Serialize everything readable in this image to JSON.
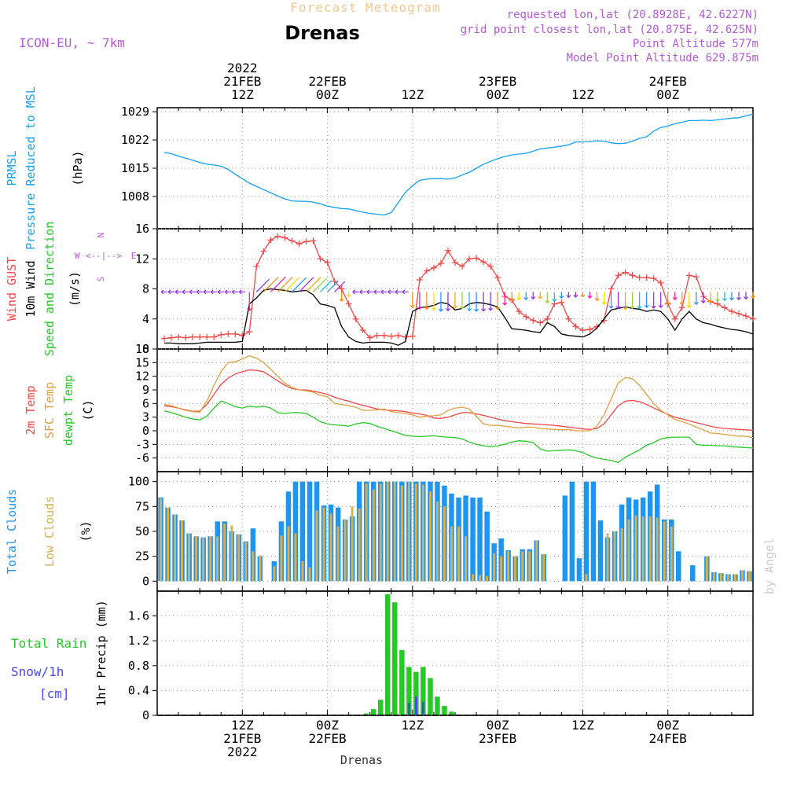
{
  "header": {
    "super_title": "Forecast Meteogram",
    "station": "Drenas",
    "model": "ICON-EU, ~ 7km",
    "requested": "requested lon,lat (20.8928E, 42.6227N)",
    "grid": "grid point closest lon,lat (20.875E, 42.625N)",
    "point_alt": "Point Altitude 577m",
    "model_alt": "Model Point Altitude 629.875m"
  },
  "footer": {
    "station": "Drenas",
    "credit": "by Angel"
  },
  "colors": {
    "pressure": "#14a0f0",
    "gust": "#f04848",
    "wind": "#000000",
    "dir_label": "#28c828",
    "t2m": "#f04848",
    "tsfc": "#e0a040",
    "dew": "#28c828",
    "total_cloud": "#1e96f0",
    "low_cloud": "#d8b050",
    "rain": "#28c828",
    "snow": "#4848f0",
    "compass": "#b45ad8",
    "grid": "#999999"
  },
  "time_axis": {
    "top_labels": [
      {
        "hour": 12,
        "lines": [
          "2022",
          "21FEB",
          "12Z"
        ]
      },
      {
        "hour": 24,
        "lines": [
          "22FEB",
          "00Z"
        ]
      },
      {
        "hour": 36,
        "lines": [
          "12Z"
        ]
      },
      {
        "hour": 48,
        "lines": [
          "23FEB",
          "00Z"
        ]
      },
      {
        "hour": 60,
        "lines": [
          "12Z"
        ]
      },
      {
        "hour": 72,
        "lines": [
          "24FEB",
          "00Z"
        ]
      }
    ],
    "bottom_labels": [
      {
        "hour": 12,
        "lines": [
          "12Z",
          "21FEB",
          "2022"
        ]
      },
      {
        "hour": 24,
        "lines": [
          "00Z",
          "22FEB"
        ]
      },
      {
        "hour": 36,
        "lines": [
          "12Z"
        ]
      },
      {
        "hour": 48,
        "lines": [
          "00Z",
          "23FEB"
        ]
      },
      {
        "hour": 60,
        "lines": [
          "12Z"
        ]
      },
      {
        "hour": 72,
        "lines": [
          "00Z",
          "24FEB"
        ]
      }
    ]
  },
  "chart_data": [
    {
      "id": "pressure",
      "type": "line",
      "title": "PRMSL Pressure Reduced to MSL",
      "ylabel": "(hPa)",
      "side_labels": [
        "PRMSL",
        "Pressure Reduced to MSL",
        "(hPa)"
      ],
      "ylim": [
        1000,
        1030
      ],
      "yticks": [
        1008,
        1015,
        1022,
        1029
      ],
      "x_start_hour": 1,
      "x_step_hour": 1,
      "series": [
        {
          "name": "Pressure",
          "values": [
            1018.9,
            1018.6,
            1018.0,
            1017.5,
            1017.0,
            1016.4,
            1016.0,
            1015.8,
            1015.5,
            1014.7,
            1013.5,
            1012.4,
            1011.3,
            1010.5,
            1009.7,
            1008.9,
            1008.1,
            1007.4,
            1006.9,
            1006.8,
            1006.8,
            1006.6,
            1006.2,
            1005.6,
            1005.3,
            1005.0,
            1004.9,
            1004.5,
            1004.1,
            1003.8,
            1003.6,
            1003.4,
            1004.0,
            1006.5,
            1009.0,
            1010.7,
            1012.0,
            1012.3,
            1012.4,
            1012.4,
            1012.3,
            1012.6,
            1013.3,
            1014.0,
            1015.0,
            1016.0,
            1016.7,
            1017.4,
            1017.9,
            1018.3,
            1018.5,
            1018.7,
            1019.2,
            1019.8,
            1020.0,
            1020.2,
            1020.5,
            1020.8,
            1021.5,
            1021.5,
            1021.6,
            1021.8,
            1021.7,
            1021.3,
            1021.1,
            1021.2,
            1021.7,
            1022.4,
            1022.8,
            1024.2,
            1025.1,
            1025.5,
            1026.0,
            1026.4,
            1026.8,
            1026.8,
            1026.9,
            1026.8,
            1027.0,
            1027.2,
            1027.4,
            1027.5,
            1028.0,
            1028.4
          ]
        }
      ]
    },
    {
      "id": "wind",
      "type": "line",
      "title": "Wind GUST, 10m Wind Speed and Direction",
      "ylabel": "(m/s)",
      "side_labels": [
        "Wind GUST",
        "10m Wind",
        "Speed and Direction",
        "(m/s)"
      ],
      "ylim": [
        0,
        16
      ],
      "yticks": [
        0,
        4,
        8,
        12,
        16
      ],
      "compass": {
        "n": "N",
        "w": "W",
        "e": "E",
        "s": "S",
        "arrow": "<--|-->"
      },
      "x_start_hour": 1,
      "x_step_hour": 1,
      "series": [
        {
          "name": "Wind GUST",
          "values": [
            1.4,
            1.5,
            1.6,
            1.5,
            1.6,
            1.6,
            1.6,
            1.6,
            1.9,
            2.0,
            2.0,
            1.8,
            2.3,
            11.0,
            13.0,
            14.5,
            15.0,
            14.8,
            14.4,
            14.0,
            14.3,
            14.4,
            12.0,
            11.5,
            9.0,
            8.0,
            6.0,
            4.0,
            2.5,
            1.5,
            1.8,
            1.8,
            1.7,
            1.8,
            1.6,
            1.7,
            9.2,
            10.4,
            10.8,
            11.4,
            13.1,
            11.5,
            11.0,
            12.0,
            12.1,
            11.6,
            11.0,
            9.5,
            7.0,
            6.5,
            5.0,
            4.3,
            3.8,
            3.5,
            4.0,
            6.0,
            6.2,
            4.0,
            3.0,
            2.5,
            2.6,
            3.0,
            3.8,
            8.0,
            9.8,
            10.2,
            9.8,
            9.5,
            9.5,
            9.4,
            8.8,
            6.0,
            4.0,
            5.5,
            9.8,
            9.6,
            7.0,
            6.3,
            6.0,
            5.5,
            5.0,
            4.7,
            4.4,
            4.0
          ]
        },
        {
          "name": "10m Wind",
          "values": [
            0.8,
            0.8,
            0.7,
            0.7,
            0.7,
            0.8,
            0.9,
            0.9,
            0.9,
            0.9,
            0.9,
            1.0,
            6.0,
            6.8,
            7.8,
            8.0,
            7.9,
            7.8,
            7.6,
            7.7,
            7.8,
            7.2,
            6.0,
            5.8,
            5.5,
            3.0,
            1.6,
            1.0,
            0.8,
            0.9,
            0.9,
            0.9,
            0.8,
            0.5,
            1.0,
            5.0,
            5.5,
            5.6,
            5.8,
            6.2,
            6.0,
            5.2,
            5.4,
            6.0,
            6.2,
            6.1,
            5.9,
            5.6,
            4.2,
            2.7,
            2.6,
            2.5,
            2.3,
            2.2,
            3.5,
            3.0,
            2.0,
            1.8,
            1.7,
            1.6,
            2.0,
            2.8,
            4.0,
            5.2,
            5.4,
            5.6,
            5.4,
            5.3,
            5.0,
            5.2,
            5.0,
            4.0,
            2.5,
            4.0,
            5.0,
            4.0,
            3.5,
            3.3,
            3.0,
            2.8,
            2.6,
            2.5,
            2.3,
            2.0
          ]
        }
      ]
    },
    {
      "id": "temperature",
      "type": "line",
      "title": "2m Temp, SFC Temp, dewpt Temp",
      "ylabel": "(C)",
      "side_labels": [
        "2m Temp",
        "SFC Temp",
        "dewpt Temp",
        "(C)"
      ],
      "ylim": [
        -9,
        18
      ],
      "yticks": [
        -6,
        -3,
        0,
        3,
        6,
        9,
        12,
        15,
        18
      ],
      "x_start_hour": 1,
      "x_step_hour": 1,
      "series": [
        {
          "name": "2m Temp",
          "values": [
            5.5,
            5.3,
            5.0,
            4.6,
            4.3,
            4.3,
            5.8,
            8.0,
            10.2,
            11.6,
            12.5,
            13.0,
            13.4,
            13.3,
            13.0,
            12.0,
            11.0,
            10.0,
            9.3,
            9.0,
            9.0,
            8.7,
            8.4,
            8.0,
            7.4,
            6.9,
            6.5,
            6.0,
            5.6,
            5.2,
            4.8,
            4.6,
            4.5,
            4.4,
            4.2,
            3.9,
            3.7,
            3.4,
            2.8,
            2.7,
            3.0,
            3.5,
            4.0,
            4.0,
            3.7,
            3.4,
            3.0,
            2.6,
            2.2,
            2.0,
            1.8,
            1.6,
            1.5,
            1.4,
            1.3,
            1.2,
            1.0,
            0.8,
            0.6,
            0.4,
            0.3,
            0.5,
            1.5,
            3.5,
            5.5,
            6.5,
            6.7,
            6.4,
            5.8,
            5.0,
            4.3,
            3.6,
            3.0,
            2.6,
            2.2,
            1.8,
            1.4,
            1.0,
            0.7,
            0.5,
            0.4,
            0.3,
            0.2,
            0.1
          ]
        },
        {
          "name": "SFC Temp",
          "values": [
            5.8,
            5.5,
            5.0,
            4.5,
            4.2,
            4.1,
            6.5,
            10.0,
            13.0,
            15.0,
            15.2,
            15.8,
            16.5,
            16.0,
            15.0,
            13.5,
            12.0,
            10.5,
            9.5,
            9.0,
            8.8,
            8.5,
            7.8,
            7.5,
            6.0,
            5.8,
            5.5,
            5.2,
            4.5,
            4.5,
            4.6,
            4.8,
            4.2,
            4.0,
            3.8,
            3.5,
            3.0,
            3.2,
            3.3,
            3.5,
            4.5,
            5.0,
            5.2,
            4.8,
            3.2,
            1.5,
            1.2,
            1.2,
            1.0,
            0.8,
            0.6,
            0.8,
            0.8,
            0.5,
            0.4,
            0.3,
            0.2,
            0.3,
            0.0,
            0.0,
            0.0,
            1.0,
            3.5,
            7.0,
            10.5,
            11.7,
            11.5,
            10.0,
            8.0,
            6.0,
            4.5,
            3.5,
            2.5,
            2.0,
            1.5,
            0.8,
            0.2,
            -0.5,
            -0.6,
            -0.8,
            -1.0,
            -1.2,
            -1.2,
            -1.5
          ]
        },
        {
          "name": "dewpt Temp",
          "values": [
            4.4,
            4.0,
            3.5,
            3.0,
            2.6,
            2.4,
            3.2,
            5.0,
            6.5,
            6.0,
            5.3,
            5.0,
            5.4,
            5.2,
            5.4,
            5.0,
            4.0,
            3.8,
            4.0,
            4.0,
            3.8,
            3.0,
            2.0,
            1.5,
            1.3,
            1.2,
            1.0,
            1.5,
            1.8,
            1.6,
            1.0,
            0.5,
            0.0,
            -0.5,
            -1.0,
            -1.2,
            -1.3,
            -1.2,
            -1.1,
            -1.3,
            -1.4,
            -1.5,
            -1.8,
            -2.5,
            -3.0,
            -3.3,
            -3.5,
            -3.3,
            -3.0,
            -2.5,
            -2.2,
            -2.3,
            -2.6,
            -4.0,
            -4.5,
            -4.4,
            -4.3,
            -4.2,
            -4.4,
            -4.8,
            -5.5,
            -6.0,
            -6.3,
            -6.5,
            -7.0,
            -5.8,
            -5.0,
            -4.2,
            -3.2,
            -2.6,
            -1.8,
            -1.5,
            -1.4,
            -1.4,
            -1.4,
            -3.0,
            -3.2,
            -3.2,
            -3.3,
            -3.3,
            -3.5,
            -3.6,
            -3.7,
            -3.8
          ]
        }
      ]
    },
    {
      "id": "clouds",
      "type": "bar",
      "title": "Total Clouds, Low Clouds",
      "ylabel": "(%)",
      "side_labels": [
        "Total Clouds",
        "Low Clouds",
        "(%)"
      ],
      "ylim": [
        -10,
        110
      ],
      "yticks": [
        0,
        25,
        50,
        75,
        100
      ],
      "x_start_hour": 0,
      "x_step_hour": 1,
      "series": [
        {
          "name": "Total Clouds",
          "values": [
            84,
            74,
            67,
            61,
            48,
            45,
            44,
            45,
            60,
            60,
            50,
            47,
            40,
            53,
            25,
            0,
            20,
            60,
            90,
            100,
            100,
            100,
            100,
            76,
            77,
            74,
            62,
            65,
            100,
            100,
            100,
            100,
            100,
            100,
            100,
            100,
            100,
            100,
            100,
            100,
            96,
            88,
            84,
            86,
            84,
            84,
            70,
            38,
            43,
            31,
            25,
            32,
            32,
            41,
            27,
            0,
            0,
            86,
            100,
            23,
            100,
            100,
            61,
            44,
            50,
            77,
            84,
            82,
            84,
            90,
            97,
            62,
            62,
            30,
            0,
            16,
            0,
            25,
            9,
            8,
            7,
            7,
            11,
            10
          ]
        },
        {
          "name": "Low Clouds",
          "values": [
            83,
            74,
            67,
            61,
            48,
            45,
            44,
            45,
            45,
            58,
            56,
            47,
            40,
            30,
            26,
            0,
            15,
            46,
            55,
            48,
            20,
            14,
            71,
            74,
            68,
            55,
            62,
            75,
            73,
            98,
            92,
            98,
            100,
            100,
            96,
            100,
            98,
            97,
            90,
            80,
            75,
            55,
            55,
            45,
            7,
            6,
            5,
            28,
            25,
            30,
            25,
            30,
            30,
            41,
            27,
            0,
            0,
            0,
            0,
            0,
            7,
            0,
            0,
            48,
            50,
            53,
            62,
            66,
            65,
            65,
            64,
            60,
            55,
            0,
            0,
            0,
            0,
            25,
            9,
            8,
            7,
            7,
            11,
            10
          ]
        }
      ]
    },
    {
      "id": "precip",
      "type": "bar",
      "title": "1hr Precip (mm)",
      "ylabel": "1hr Precip (mm)",
      "side_labels": [
        "Total Rain",
        "Snow/1h",
        "[cm]",
        "1hr Precip (mm)"
      ],
      "ylim": [
        0,
        2.0
      ],
      "yticks": [
        0,
        0.4,
        0.8,
        1.2,
        1.6
      ],
      "tick_labels": [
        "0",
        "0.4",
        "0.8",
        "1.2",
        "1.6"
      ],
      "x_start_hour": 0,
      "x_step_hour": 1,
      "series": [
        {
          "name": "Total Rain",
          "values": [
            0,
            0,
            0,
            0,
            0,
            0,
            0,
            0,
            0,
            0,
            0,
            0,
            0,
            0,
            0,
            0,
            0,
            0,
            0,
            0,
            0,
            0,
            0,
            0,
            0,
            0,
            0,
            0,
            0,
            0.03,
            0.1,
            0.25,
            1.95,
            1.82,
            1.05,
            0.78,
            0.7,
            0.78,
            0.6,
            0.3,
            0.15,
            0.06,
            0,
            0,
            0,
            0,
            0,
            0,
            0,
            0,
            0,
            0,
            0,
            0,
            0,
            0,
            0,
            0,
            0,
            0,
            0,
            0,
            0,
            0,
            0,
            0,
            0,
            0,
            0,
            0,
            0,
            0,
            0,
            0,
            0,
            0,
            0,
            0,
            0,
            0,
            0,
            0,
            0,
            0
          ]
        },
        {
          "name": "Snow/1h",
          "values": [
            0,
            0,
            0,
            0,
            0,
            0,
            0,
            0,
            0,
            0,
            0,
            0,
            0,
            0,
            0,
            0,
            0,
            0,
            0,
            0,
            0,
            0,
            0,
            0,
            0,
            0,
            0,
            0,
            0,
            0,
            0,
            0,
            0,
            0,
            0,
            0.2,
            0.3,
            0.22,
            0,
            0,
            0,
            0,
            0,
            0,
            0,
            0,
            0,
            0,
            0,
            0,
            0,
            0,
            0,
            0,
            0,
            0,
            0,
            0,
            0,
            0,
            0,
            0,
            0,
            0,
            0,
            0,
            0,
            0,
            0,
            0,
            0,
            0,
            0,
            0,
            0,
            0,
            0,
            0,
            0,
            0,
            0,
            0,
            0,
            0
          ]
        }
      ]
    }
  ]
}
